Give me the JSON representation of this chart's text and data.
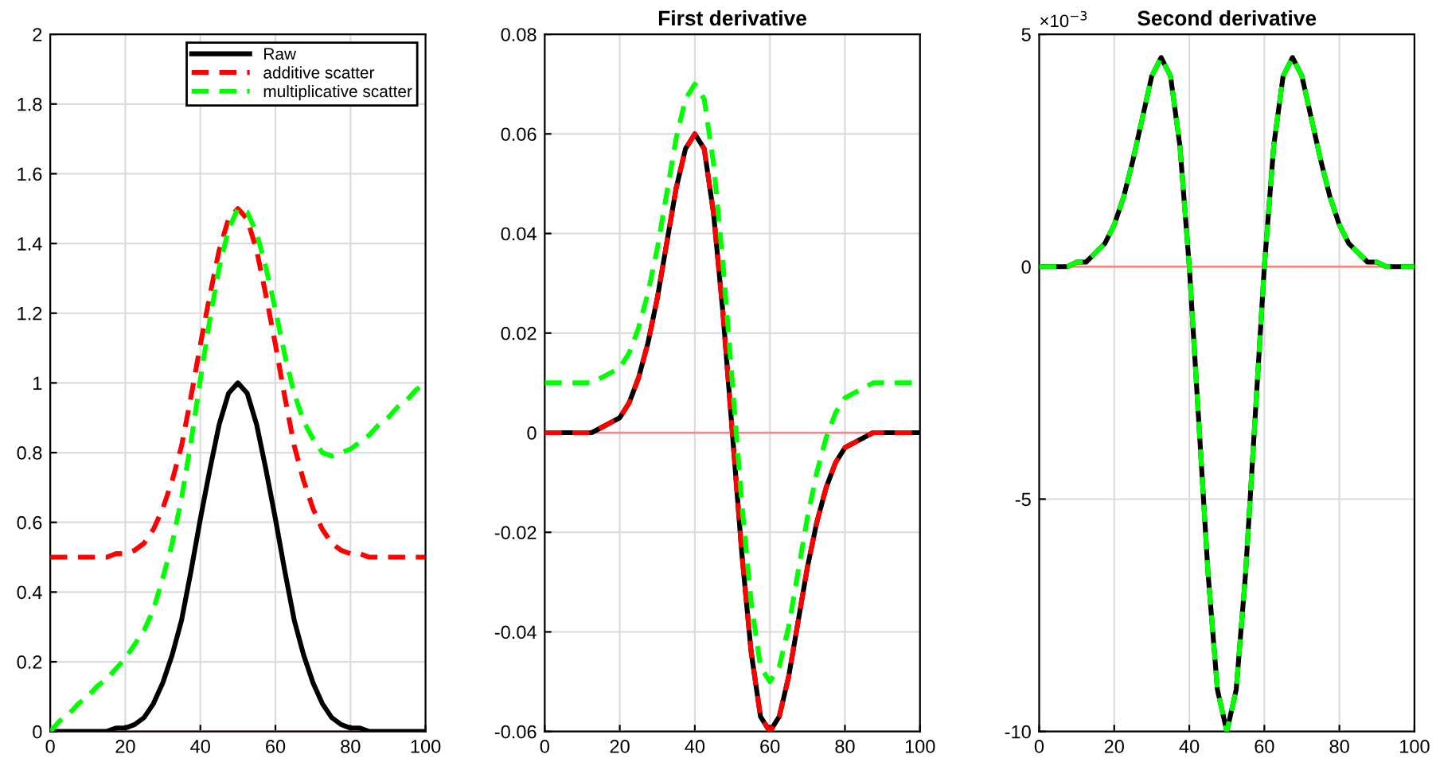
{
  "chart_data": [
    {
      "type": "line",
      "x": [
        0,
        2.5,
        5,
        7.5,
        10,
        12.5,
        15,
        17.5,
        20,
        22.5,
        25,
        27.5,
        30,
        32.5,
        35,
        37.5,
        40,
        42.5,
        45,
        47.5,
        50,
        52.5,
        55,
        57.5,
        60,
        62.5,
        65,
        67.5,
        70,
        72.5,
        75,
        77.5,
        80,
        82.5,
        85,
        87.5,
        90,
        92.5,
        95,
        97.5,
        100
      ],
      "series": [
        {
          "name": "Raw",
          "color": "#000000",
          "line_style": "solid",
          "values": [
            0,
            0,
            0,
            0,
            0,
            0,
            0,
            0.01,
            0.01,
            0.02,
            0.04,
            0.08,
            0.14,
            0.22,
            0.32,
            0.46,
            0.61,
            0.75,
            0.88,
            0.97,
            1,
            0.97,
            0.88,
            0.75,
            0.61,
            0.46,
            0.32,
            0.22,
            0.14,
            0.08,
            0.04,
            0.02,
            0.01,
            0.01,
            0,
            0,
            0,
            0,
            0,
            0,
            0
          ]
        },
        {
          "name": "additive scatter",
          "color": "#ff0000",
          "line_style": "dashed",
          "values": [
            0.5,
            0.5,
            0.5,
            0.5,
            0.5,
            0.5,
            0.5,
            0.51,
            0.51,
            0.52,
            0.54,
            0.58,
            0.64,
            0.72,
            0.82,
            0.96,
            1.11,
            1.25,
            1.38,
            1.47,
            1.5,
            1.47,
            1.38,
            1.25,
            1.11,
            0.96,
            0.82,
            0.72,
            0.64,
            0.58,
            0.54,
            0.52,
            0.51,
            0.51,
            0.5,
            0.5,
            0.5,
            0.5,
            0.5,
            0.5,
            0.5
          ]
        },
        {
          "name": "multiplicative scatter",
          "color": "#00ff00",
          "line_style": "dashed",
          "values": [
            0,
            0.03,
            0.05,
            0.08,
            0.1,
            0.13,
            0.15,
            0.18,
            0.21,
            0.25,
            0.29,
            0.35,
            0.44,
            0.54,
            0.67,
            0.83,
            1.01,
            1.18,
            1.33,
            1.44,
            1.5,
            1.49,
            1.43,
            1.33,
            1.21,
            1.08,
            0.97,
            0.89,
            0.84,
            0.8,
            0.79,
            0.8,
            0.81,
            0.83,
            0.85,
            0.88,
            0.9,
            0.93,
            0.95,
            0.98,
            1
          ]
        }
      ],
      "xlim": [
        0,
        100
      ],
      "xticks": [
        0,
        20,
        40,
        60,
        80,
        100
      ],
      "ylim": [
        0,
        2
      ],
      "yticks": [
        0,
        0.2,
        0.4,
        0.6,
        0.8,
        1,
        1.2,
        1.4,
        1.6,
        1.8,
        2
      ],
      "ref_lines": [
        {
          "axis": "y",
          "value": 0,
          "color": "#ff8080"
        }
      ],
      "grid": true,
      "legend": "top right"
    },
    {
      "type": "line",
      "title": "First derivative",
      "x": [
        0,
        2.5,
        5,
        7.5,
        10,
        12.5,
        15,
        17.5,
        20,
        22.5,
        25,
        27.5,
        30,
        32.5,
        35,
        37.5,
        40,
        42.5,
        45,
        47.5,
        50,
        52.5,
        55,
        57.5,
        60,
        62.5,
        65,
        67.5,
        70,
        72.5,
        75,
        77.5,
        80,
        82.5,
        85,
        87.5,
        90,
        92.5,
        95,
        97.5,
        100
      ],
      "series": [
        {
          "color": "#000000",
          "line_style": "solid",
          "values": [
            0,
            0,
            0,
            0,
            0,
            0,
            0.001,
            0.002,
            0.003,
            0.006,
            0.011,
            0.018,
            0.027,
            0.038,
            0.049,
            0.057,
            0.06,
            0.057,
            0.044,
            0.024,
            0,
            -0.024,
            -0.044,
            -0.057,
            -0.06,
            -0.057,
            -0.049,
            -0.038,
            -0.027,
            -0.018,
            -0.011,
            -0.006,
            -0.003,
            -0.002,
            -0.001,
            0,
            0,
            0,
            0,
            0,
            0
          ]
        },
        {
          "color": "#ff0000",
          "line_style": "dashed",
          "values": [
            0,
            0,
            0,
            0,
            0,
            0,
            0.001,
            0.002,
            0.003,
            0.006,
            0.011,
            0.018,
            0.027,
            0.038,
            0.049,
            0.057,
            0.06,
            0.057,
            0.044,
            0.024,
            0,
            -0.024,
            -0.044,
            -0.057,
            -0.06,
            -0.057,
            -0.049,
            -0.038,
            -0.027,
            -0.018,
            -0.011,
            -0.006,
            -0.003,
            -0.002,
            -0.001,
            0,
            0,
            0,
            0,
            0,
            0
          ]
        },
        {
          "color": "#00ff00",
          "line_style": "dashed",
          "values": [
            0.01,
            0.01,
            0.01,
            0.01,
            0.01,
            0.01,
            0.011,
            0.012,
            0.013,
            0.016,
            0.021,
            0.028,
            0.037,
            0.048,
            0.059,
            0.067,
            0.07,
            0.067,
            0.054,
            0.034,
            0.01,
            -0.014,
            -0.034,
            -0.047,
            -0.05,
            -0.047,
            -0.039,
            -0.028,
            -0.017,
            -0.008,
            -0.001,
            0.004,
            0.007,
            0.008,
            0.009,
            0.01,
            0.01,
            0.01,
            0.01,
            0.01,
            0.01
          ]
        }
      ],
      "xlim": [
        0,
        100
      ],
      "xticks": [
        0,
        20,
        40,
        60,
        80,
        100
      ],
      "ylim": [
        -0.06,
        0.08
      ],
      "yticks": [
        -0.06,
        -0.04,
        -0.02,
        0,
        0.02,
        0.04,
        0.06,
        0.08
      ],
      "ref_lines": [
        {
          "axis": "y",
          "value": 0,
          "color": "#ff8080"
        }
      ],
      "grid": true
    },
    {
      "type": "line",
      "title": "Second derivative",
      "annotations": [
        "×10$^{−3}$"
      ],
      "x": [
        0,
        2.5,
        5,
        7.5,
        10,
        12.5,
        15,
        17.5,
        20,
        22.5,
        25,
        27.5,
        30,
        32.5,
        35,
        37.5,
        40,
        42.5,
        45,
        47.5,
        50,
        52.5,
        55,
        57.5,
        60,
        62.5,
        65,
        67.5,
        70,
        72.5,
        75,
        77.5,
        80,
        82.5,
        85,
        87.5,
        90,
        92.5,
        95,
        97.5,
        100
      ],
      "series": [
        {
          "color": "#000000",
          "line_style": "solid",
          "values": [
            0,
            0,
            0,
            0,
            0.1,
            0.1,
            0.3,
            0.5,
            0.9,
            1.5,
            2.3,
            3.2,
            4.1,
            4.5,
            4.1,
            2.6,
            0,
            -3.3,
            -6.6,
            -9.1,
            -10,
            -9.1,
            -6.6,
            -3.3,
            0,
            2.6,
            4.1,
            4.5,
            4.1,
            3.2,
            2.3,
            1.5,
            0.9,
            0.5,
            0.3,
            0.1,
            0.1,
            0,
            0,
            0,
            0
          ]
        },
        {
          "color": "#00ff00",
          "line_style": "dashed",
          "values": [
            0,
            0,
            0,
            0,
            0.1,
            0.1,
            0.3,
            0.5,
            0.9,
            1.5,
            2.3,
            3.2,
            4.1,
            4.5,
            4.1,
            2.6,
            0,
            -3.3,
            -6.6,
            -9.1,
            -10,
            -9.1,
            -6.6,
            -3.3,
            0,
            2.6,
            4.1,
            4.5,
            4.1,
            3.2,
            2.3,
            1.5,
            0.9,
            0.5,
            0.3,
            0.1,
            0.1,
            0,
            0,
            0,
            0
          ]
        }
      ],
      "xlim": [
        0,
        100
      ],
      "xticks": [
        0,
        20,
        40,
        60,
        80,
        100
      ],
      "ylim": [
        -10,
        5
      ],
      "yticks": [
        -10,
        -5,
        0,
        5
      ],
      "ref_lines": [
        {
          "axis": "y",
          "value": 0,
          "color": "#ff8080"
        }
      ],
      "grid": true
    }
  ]
}
